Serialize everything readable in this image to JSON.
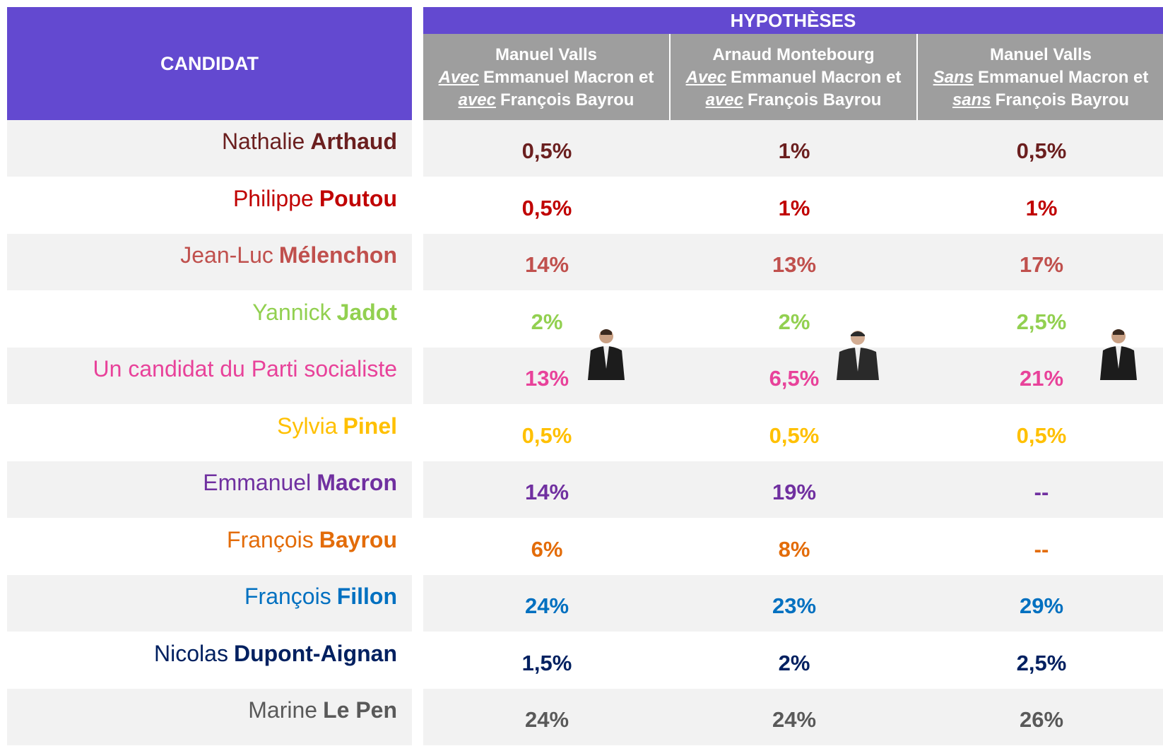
{
  "header": {
    "candidate": "CANDIDAT",
    "hypotheses": "HYPOTHÈSES",
    "columns": [
      {
        "title": "Manuel Valls",
        "line2_underlined": "Avec",
        "line2": "Emmanuel Macron et",
        "line3_underlined": "avec",
        "line3": "François Bayrou"
      },
      {
        "title": "Arnaud Montebourg",
        "line2_underlined": "Avec",
        "line2": "Emmanuel Macron et",
        "line3_underlined": "avec",
        "line3": "François Bayrou"
      },
      {
        "title": "Manuel Valls",
        "line2_underlined": "Sans",
        "line2": "Emmanuel Macron et",
        "line3_underlined": "sans",
        "line3": "François Bayrou"
      }
    ]
  },
  "table": {
    "rows": [
      {
        "first": "Nathalie",
        "last": "Arthaud",
        "color": "#6b1f1f",
        "values": [
          "0,5%",
          "1%",
          "0,5%"
        ]
      },
      {
        "first": "Philippe",
        "last": "Poutou",
        "color": "#c00000",
        "values": [
          "0,5%",
          "1%",
          "1%"
        ]
      },
      {
        "first": "Jean-Luc",
        "last": "Mélenchon",
        "color": "#c0504d",
        "values": [
          "14%",
          "13%",
          "17%"
        ]
      },
      {
        "first": "Yannick",
        "last": "Jadot",
        "color": "#92d050",
        "values": [
          "2%",
          "2%",
          "2,5%"
        ]
      },
      {
        "first": "Un candidat du Parti socialiste",
        "color": "#e8429a",
        "values": [
          "13%",
          "6,5%",
          "21%"
        ]
      },
      {
        "first": "Sylvia",
        "last": "Pinel",
        "color": "#ffc000",
        "values": [
          "0,5%",
          "0,5%",
          "0,5%"
        ]
      },
      {
        "first": "Emmanuel",
        "last": "Macron",
        "color": "#7030a0",
        "values": [
          "14%",
          "19%",
          "--"
        ]
      },
      {
        "first": "François",
        "last": "Bayrou",
        "color": "#e36c09",
        "values": [
          "6%",
          "8%",
          "--"
        ]
      },
      {
        "first": "François",
        "last": "Fillon",
        "color": "#0070c0",
        "values": [
          "24%",
          "23%",
          "29%"
        ]
      },
      {
        "first": "Nicolas",
        "last": "Dupont-Aignan",
        "color": "#002060",
        "values": [
          "1,5%",
          "2%",
          "2,5%"
        ]
      },
      {
        "first": "Marine",
        "last": "Le Pen",
        "color": "#595959",
        "values": [
          "24%",
          "24%",
          "26%"
        ]
      }
    ]
  }
}
